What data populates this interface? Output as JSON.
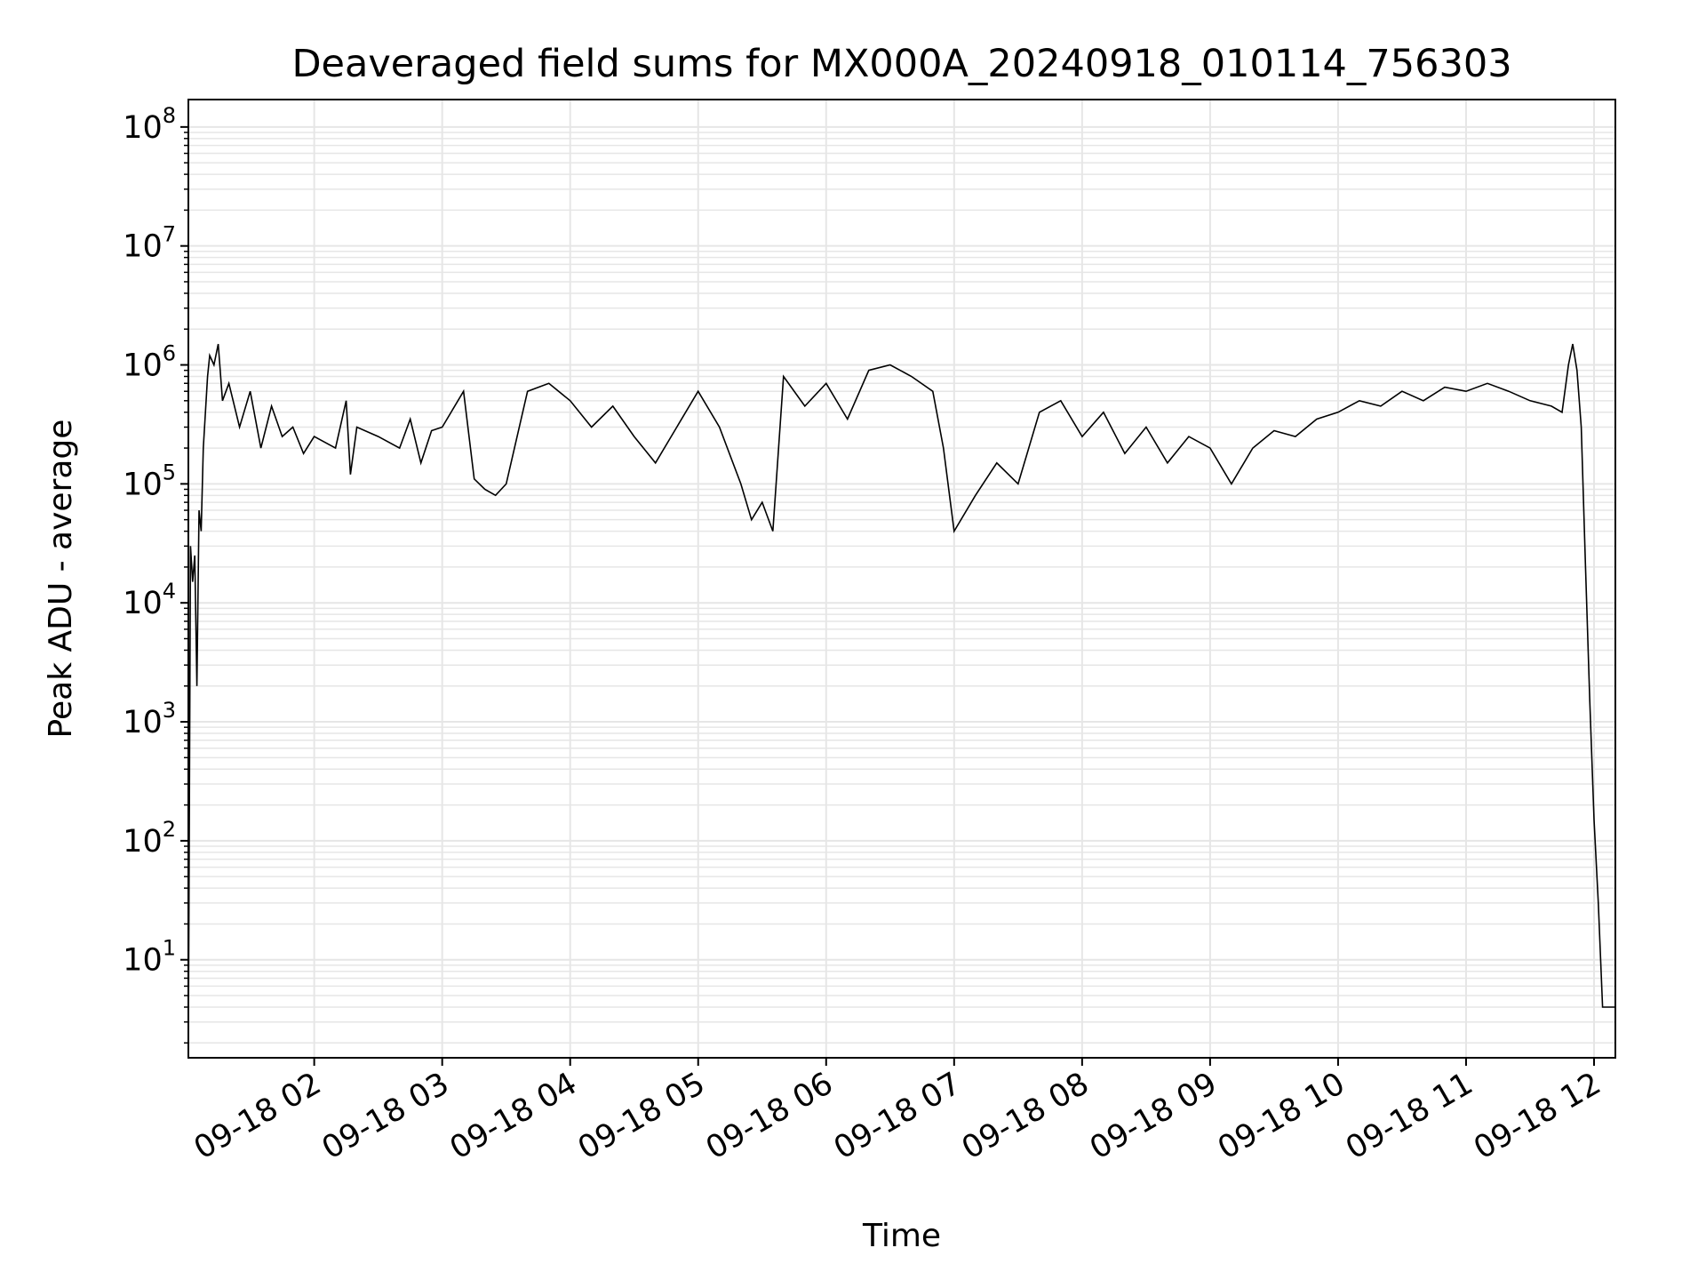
{
  "chart_data": {
    "type": "line",
    "title": "Deaveraged field sums for MX000A_20240918_010114_756303",
    "xlabel": "Time",
    "ylabel": "Peak ADU - average",
    "x_scale": "time",
    "y_scale": "log",
    "xlim": [
      "2024-09-18 01:01",
      "2024-09-18 12:10"
    ],
    "ylim": [
      1.5,
      170000000
    ],
    "grid": true,
    "line_color": "#000000",
    "grid_color": "#e6e6e6",
    "x_ticks": [
      {
        "label": "09-18 02",
        "value": "2024-09-18 02:00"
      },
      {
        "label": "09-18 03",
        "value": "2024-09-18 03:00"
      },
      {
        "label": "09-18 04",
        "value": "2024-09-18 04:00"
      },
      {
        "label": "09-18 05",
        "value": "2024-09-18 05:00"
      },
      {
        "label": "09-18 06",
        "value": "2024-09-18 06:00"
      },
      {
        "label": "09-18 07",
        "value": "2024-09-18 07:00"
      },
      {
        "label": "09-18 08",
        "value": "2024-09-18 08:00"
      },
      {
        "label": "09-18 09",
        "value": "2024-09-18 09:00"
      },
      {
        "label": "09-18 10",
        "value": "2024-09-18 10:00"
      },
      {
        "label": "09-18 11",
        "value": "2024-09-18 11:00"
      },
      {
        "label": "09-18 12",
        "value": "2024-09-18 12:00"
      }
    ],
    "y_ticks": [
      {
        "base": "10",
        "exp": "1",
        "value": 10
      },
      {
        "base": "10",
        "exp": "2",
        "value": 100
      },
      {
        "base": "10",
        "exp": "3",
        "value": 1000
      },
      {
        "base": "10",
        "exp": "4",
        "value": 10000
      },
      {
        "base": "10",
        "exp": "5",
        "value": 100000
      },
      {
        "base": "10",
        "exp": "6",
        "value": 1000000
      },
      {
        "base": "10",
        "exp": "7",
        "value": 10000000
      },
      {
        "base": "10",
        "exp": "8",
        "value": 100000000
      }
    ],
    "series": [
      {
        "x": [
          "2024-09-18 01:01",
          "2024-09-18 01:02",
          "2024-09-18 01:03",
          "2024-09-18 01:04",
          "2024-09-18 01:05",
          "2024-09-18 01:06",
          "2024-09-18 01:07",
          "2024-09-18 01:08",
          "2024-09-18 01:10",
          "2024-09-18 01:11",
          "2024-09-18 01:13",
          "2024-09-18 01:15",
          "2024-09-18 01:17",
          "2024-09-18 01:20",
          "2024-09-18 01:25",
          "2024-09-18 01:30",
          "2024-09-18 01:35",
          "2024-09-18 01:40",
          "2024-09-18 01:45",
          "2024-09-18 01:50",
          "2024-09-18 01:55",
          "2024-09-18 02:00",
          "2024-09-18 02:10",
          "2024-09-18 02:15",
          "2024-09-18 02:17",
          "2024-09-18 02:20",
          "2024-09-18 02:30",
          "2024-09-18 02:40",
          "2024-09-18 02:45",
          "2024-09-18 02:50",
          "2024-09-18 02:55",
          "2024-09-18 03:00",
          "2024-09-18 03:10",
          "2024-09-18 03:15",
          "2024-09-18 03:20",
          "2024-09-18 03:25",
          "2024-09-18 03:30",
          "2024-09-18 03:40",
          "2024-09-18 03:50",
          "2024-09-18 04:00",
          "2024-09-18 04:10",
          "2024-09-18 04:20",
          "2024-09-18 04:30",
          "2024-09-18 04:40",
          "2024-09-18 04:50",
          "2024-09-18 05:00",
          "2024-09-18 05:10",
          "2024-09-18 05:20",
          "2024-09-18 05:25",
          "2024-09-18 05:30",
          "2024-09-18 05:35",
          "2024-09-18 05:40",
          "2024-09-18 05:50",
          "2024-09-18 06:00",
          "2024-09-18 06:10",
          "2024-09-18 06:20",
          "2024-09-18 06:30",
          "2024-09-18 06:40",
          "2024-09-18 06:50",
          "2024-09-18 06:55",
          "2024-09-18 07:00",
          "2024-09-18 07:10",
          "2024-09-18 07:20",
          "2024-09-18 07:30",
          "2024-09-18 07:40",
          "2024-09-18 07:50",
          "2024-09-18 08:00",
          "2024-09-18 08:10",
          "2024-09-18 08:20",
          "2024-09-18 08:30",
          "2024-09-18 08:40",
          "2024-09-18 08:50",
          "2024-09-18 09:00",
          "2024-09-18 09:10",
          "2024-09-18 09:20",
          "2024-09-18 09:30",
          "2024-09-18 09:40",
          "2024-09-18 09:50",
          "2024-09-18 10:00",
          "2024-09-18 10:10",
          "2024-09-18 10:20",
          "2024-09-18 10:30",
          "2024-09-18 10:40",
          "2024-09-18 10:50",
          "2024-09-18 11:00",
          "2024-09-18 11:10",
          "2024-09-18 11:20",
          "2024-09-18 11:30",
          "2024-09-18 11:40",
          "2024-09-18 11:45",
          "2024-09-18 11:48",
          "2024-09-18 11:50",
          "2024-09-18 11:52",
          "2024-09-18 11:54",
          "2024-09-18 11:56",
          "2024-09-18 11:58",
          "2024-09-18 12:00",
          "2024-09-18 12:02",
          "2024-09-18 12:04",
          "2024-09-18 12:06",
          "2024-09-18 12:08",
          "2024-09-18 12:10"
        ],
        "y": [
          2,
          30000,
          15000,
          25000,
          2000,
          60000,
          40000,
          200000,
          800000,
          1200000,
          1000000,
          1500000,
          500000,
          700000,
          300000,
          600000,
          200000,
          450000,
          250000,
          300000,
          180000,
          250000,
          200000,
          500000,
          120000,
          300000,
          250000,
          200000,
          350000,
          150000,
          280000,
          300000,
          600000,
          110000,
          90000,
          80000,
          100000,
          600000,
          700000,
          500000,
          300000,
          450000,
          250000,
          150000,
          300000,
          600000,
          300000,
          100000,
          50000,
          70000,
          40000,
          800000,
          450000,
          700000,
          350000,
          900000,
          1000000,
          800000,
          600000,
          200000,
          40000,
          80000,
          150000,
          100000,
          400000,
          500000,
          250000,
          400000,
          180000,
          300000,
          150000,
          250000,
          200000,
          100000,
          200000,
          280000,
          250000,
          350000,
          400000,
          500000,
          450000,
          600000,
          500000,
          650000,
          600000,
          700000,
          600000,
          500000,
          450000,
          400000,
          1000000,
          1500000,
          900000,
          300000,
          20000,
          1500,
          150,
          30,
          4,
          4,
          4,
          4
        ]
      }
    ]
  }
}
